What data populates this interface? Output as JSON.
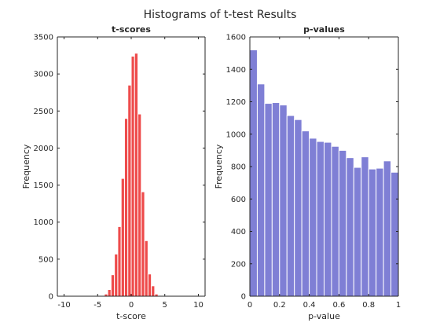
{
  "figure": {
    "suptitle": "Histograms of t-test Results"
  },
  "chart_data": [
    {
      "type": "bar",
      "title": "t-scores",
      "xlabel": "t-score",
      "ylabel": "Frequency",
      "xlim": [
        -11,
        11
      ],
      "ylim": [
        0,
        3500
      ],
      "xticks": [
        -10,
        -5,
        0,
        5,
        10
      ],
      "yticks": [
        0,
        500,
        1000,
        1500,
        2000,
        2500,
        3000,
        3500
      ],
      "bar_color": "#ee4b4b",
      "bin_width": 0.5,
      "bin_left_edges": [
        -5.0,
        -4.5,
        -4.0,
        -3.5,
        -3.0,
        -2.5,
        -2.0,
        -1.5,
        -1.0,
        -0.5,
        0.0,
        0.5,
        1.0,
        1.5,
        2.0,
        2.5,
        3.0,
        3.5
      ],
      "values": [
        2,
        5,
        30,
        90,
        290,
        570,
        940,
        1590,
        2400,
        2850,
        3240,
        3280,
        2460,
        1410,
        750,
        300,
        140,
        30
      ],
      "grid": false,
      "box": true
    },
    {
      "type": "bar",
      "title": "p-values",
      "xlabel": "p-value",
      "ylabel": "Frequency",
      "xlim": [
        0,
        1
      ],
      "ylim": [
        0,
        1600
      ],
      "xticks": [
        0,
        0.2,
        0.4,
        0.6,
        0.8,
        1
      ],
      "yticks": [
        0,
        200,
        400,
        600,
        800,
        1000,
        1200,
        1400,
        1600
      ],
      "bar_color": "#7f7fd5",
      "bin_width": 0.05,
      "bin_left_edges": [
        0,
        0.05,
        0.1,
        0.15,
        0.2,
        0.25,
        0.3,
        0.35,
        0.4,
        0.45,
        0.5,
        0.55,
        0.6,
        0.65,
        0.7,
        0.75,
        0.8,
        0.85,
        0.9,
        0.95
      ],
      "values": [
        1520,
        1310,
        1190,
        1195,
        1180,
        1115,
        1090,
        1020,
        975,
        955,
        950,
        925,
        900,
        855,
        795,
        860,
        785,
        790,
        835,
        765
      ],
      "grid": false,
      "box": true
    }
  ]
}
